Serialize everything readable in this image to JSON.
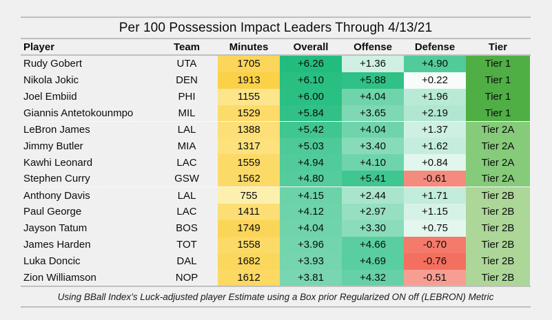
{
  "chart_data": {
    "type": "table",
    "title": "Per 100 Possession Impact Leaders Through 4/13/21",
    "columns": [
      "Player",
      "Team",
      "Minutes",
      "Overall",
      "Offense",
      "Defense",
      "Tier"
    ],
    "rows": [
      {
        "player": "Rudy Gobert",
        "team": "UTA",
        "minutes": "1705",
        "overall": "+6.26",
        "offense": "+1.36",
        "defense": "+4.90",
        "tier": "Tier 1"
      },
      {
        "player": "Nikola Jokic",
        "team": "DEN",
        "minutes": "1913",
        "overall": "+6.10",
        "offense": "+5.88",
        "defense": "+0.22",
        "tier": "Tier 1"
      },
      {
        "player": "Joel Embiid",
        "team": "PHI",
        "minutes": "1155",
        "overall": "+6.00",
        "offense": "+4.04",
        "defense": "+1.96",
        "tier": "Tier 1"
      },
      {
        "player": "Giannis Antetokounmpo",
        "team": "MIL",
        "minutes": "1529",
        "overall": "+5.84",
        "offense": "+3.65",
        "defense": "+2.19",
        "tier": "Tier 1"
      },
      {
        "player": "LeBron James",
        "team": "LAL",
        "minutes": "1388",
        "overall": "+5.42",
        "offense": "+4.04",
        "defense": "+1.37",
        "tier": "Tier 2A"
      },
      {
        "player": "Jimmy Butler",
        "team": "MIA",
        "minutes": "1317",
        "overall": "+5.03",
        "offense": "+3.40",
        "defense": "+1.62",
        "tier": "Tier 2A"
      },
      {
        "player": "Kawhi Leonard",
        "team": "LAC",
        "minutes": "1559",
        "overall": "+4.94",
        "offense": "+4.10",
        "defense": "+0.84",
        "tier": "Tier 2A"
      },
      {
        "player": "Stephen Curry",
        "team": "GSW",
        "minutes": "1562",
        "overall": "+4.80",
        "offense": "+5.41",
        "defense": "-0.61",
        "tier": "Tier 2A"
      },
      {
        "player": "Anthony Davis",
        "team": "LAL",
        "minutes": "755",
        "overall": "+4.15",
        "offense": "+2.44",
        "defense": "+1.71",
        "tier": "Tier 2B"
      },
      {
        "player": "Paul George",
        "team": "LAC",
        "minutes": "1411",
        "overall": "+4.12",
        "offense": "+2.97",
        "defense": "+1.15",
        "tier": "Tier 2B"
      },
      {
        "player": "Jayson Tatum",
        "team": "BOS",
        "minutes": "1749",
        "overall": "+4.04",
        "offense": "+3.30",
        "defense": "+0.75",
        "tier": "Tier 2B"
      },
      {
        "player": "James Harden",
        "team": "TOT",
        "minutes": "1558",
        "overall": "+3.96",
        "offense": "+4.66",
        "defense": "-0.70",
        "tier": "Tier 2B"
      },
      {
        "player": "Luka Doncic",
        "team": "DAL",
        "minutes": "1682",
        "overall": "+3.93",
        "offense": "+4.69",
        "defense": "-0.76",
        "tier": "Tier 2B"
      },
      {
        "player": "Zion Williamson",
        "team": "NOP",
        "minutes": "1612",
        "overall": "+3.81",
        "offense": "+4.32",
        "defense": "-0.51",
        "tier": "Tier 2B"
      }
    ],
    "footnote": "Using BBall Index's Luck-adjusted player Estimate using a Box prior Regularized ON off (LEBRON) Metric"
  },
  "colors": {
    "background": "#F0F0F0",
    "rule": "#BFBFBF",
    "tier": {
      "Tier 1": "#4FAF45",
      "Tier 2A": "#85CB79",
      "Tier 2B": "#ADD699"
    },
    "cells": [
      {
        "minutes": "#FBD65A",
        "overall": "#22BD7E",
        "offense": "#CFF0E2",
        "defense": "#52CB9A"
      },
      {
        "minutes": "#FBD148",
        "overall": "#28BF81",
        "offense": "#2FC186",
        "defense": "#F7FCFA"
      },
      {
        "minutes": "#FCE58B",
        "overall": "#2BC083",
        "offense": "#70D4AB",
        "defense": "#B9EAD6"
      },
      {
        "minutes": "#FCDB6A",
        "overall": "#31C187",
        "offense": "#7ED8B3",
        "defense": "#B1E7D1"
      },
      {
        "minutes": "#FCDF77",
        "overall": "#40C68F",
        "offense": "#70D4AB",
        "defense": "#CEF0E2"
      },
      {
        "minutes": "#FCE17D",
        "overall": "#4DCA97",
        "offense": "#87DBB8",
        "defense": "#C5EDDD"
      },
      {
        "minutes": "#FCDA67",
        "overall": "#51CB99",
        "offense": "#6ED4AB",
        "defense": "#E1F6ED"
      },
      {
        "minutes": "#FCDA67",
        "overall": "#55CC9C",
        "offense": "#40C690",
        "defense": "#F58B7E"
      },
      {
        "minutes": "#FDF0AF",
        "overall": "#6CD3A9",
        "offense": "#A8E5CC",
        "defense": "#C2ECDB"
      },
      {
        "minutes": "#FCDE75",
        "overall": "#6DD3AA",
        "offense": "#96DFC1",
        "defense": "#D6F2E7"
      },
      {
        "minutes": "#FBD557",
        "overall": "#70D4AB",
        "offense": "#8ADCBB",
        "defense": "#E4F7EF"
      },
      {
        "minutes": "#FCDA68",
        "overall": "#73D5AD",
        "offense": "#5ACE9F",
        "defense": "#F47A6B"
      },
      {
        "minutes": "#FBD75D",
        "overall": "#74D5AE",
        "offense": "#59CE9E",
        "defense": "#F36F5F"
      },
      {
        "minutes": "#FBD963",
        "overall": "#78D6B0",
        "offense": "#66D1A6",
        "defense": "#F79E93"
      }
    ]
  }
}
